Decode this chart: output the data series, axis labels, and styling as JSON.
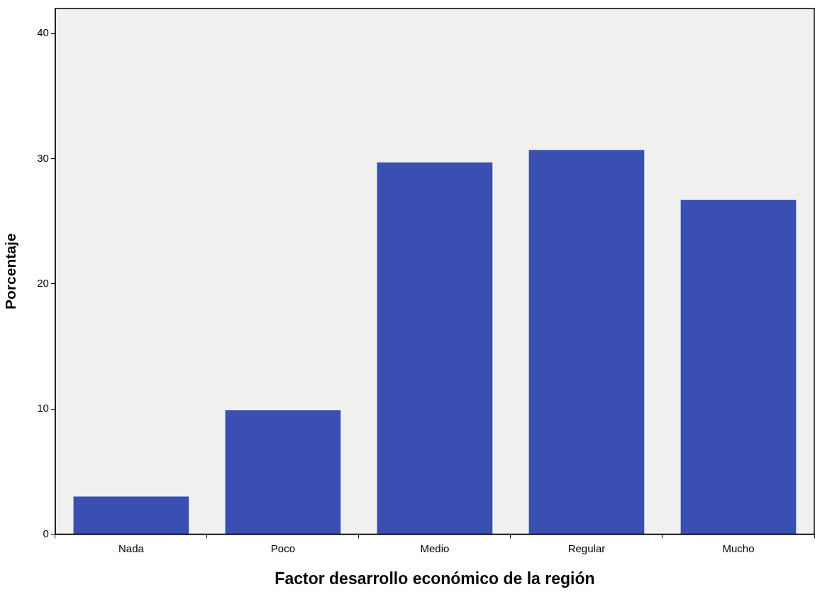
{
  "chart_data": {
    "type": "bar",
    "xlabel": "Factor desarrollo económico de la región",
    "ylabel": "Porcentaje",
    "categories": [
      "Nada",
      "Poco",
      "Medio",
      "Regular",
      "Mucho"
    ],
    "values": [
      3.0,
      9.9,
      29.7,
      30.7,
      26.7
    ],
    "color": "#3a4fb2",
    "ylim": [
      0,
      42
    ],
    "yticks": [
      0,
      10,
      20,
      30,
      40
    ],
    "grid": false,
    "legend": false
  }
}
